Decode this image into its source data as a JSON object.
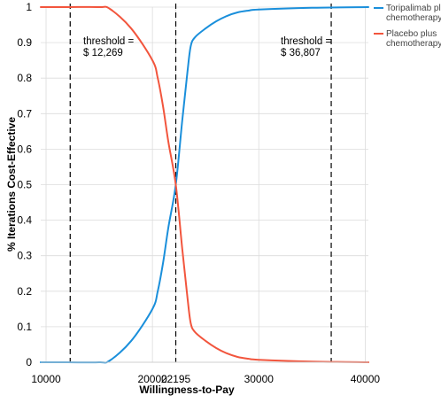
{
  "chart_data": {
    "type": "line",
    "xlabel": "Willingness-to-Pay",
    "ylabel": "% Iterations Cost-Effective",
    "xlim": [
      9500,
      40300
    ],
    "ylim": [
      0,
      1
    ],
    "x_ticks": [
      10000,
      20000,
      22195,
      30000,
      40000
    ],
    "x_tick_labels": [
      "10000",
      "20000",
      "22195",
      "30000",
      "40000"
    ],
    "y_ticks": [
      0,
      0.1,
      0.2,
      0.3,
      0.4,
      0.5,
      0.6,
      0.7,
      0.8,
      0.9,
      1
    ],
    "y_tick_labels": [
      "0",
      "0.1",
      "0.2",
      "0.3",
      "0.4",
      "0.5",
      "0.6",
      "0.7",
      "0.8",
      "0.9",
      "1"
    ],
    "grid": true,
    "legend_position": "right",
    "series": [
      {
        "name": "Toripalimab plus chemotherapy",
        "color": "#1a8fdb",
        "x": [
          9500,
          12000,
          15000,
          16000,
          18000,
          20000,
          20500,
          21000,
          21500,
          22195,
          22800,
          23300,
          23600,
          24000,
          25000,
          26000,
          27000,
          28000,
          29000,
          30000,
          35000,
          40300
        ],
        "y": [
          0,
          0,
          0,
          0.005,
          0.06,
          0.15,
          0.2,
          0.28,
          0.38,
          0.5,
          0.68,
          0.82,
          0.89,
          0.915,
          0.94,
          0.96,
          0.975,
          0.985,
          0.99,
          0.993,
          0.998,
          1
        ]
      },
      {
        "name": "Placebo plus chemotherapy",
        "color": "#f2553d",
        "x": [
          9500,
          12000,
          15000,
          16000,
          18000,
          20000,
          20500,
          21000,
          21500,
          22195,
          22800,
          23300,
          23600,
          24000,
          25000,
          26000,
          27000,
          28000,
          29000,
          30000,
          35000,
          40300
        ],
        "y": [
          1,
          1,
          1,
          0.995,
          0.94,
          0.85,
          0.8,
          0.72,
          0.62,
          0.5,
          0.32,
          0.18,
          0.11,
          0.085,
          0.06,
          0.04,
          0.025,
          0.015,
          0.01,
          0.007,
          0.002,
          0
        ]
      }
    ],
    "reference_lines": [
      {
        "x": 12269,
        "label_lines": [
          "threshold =",
          "$ 12,269"
        ]
      },
      {
        "x": 22195,
        "label_lines": []
      },
      {
        "x": 36807,
        "label_lines": [
          "threshold =",
          "$ 36,807"
        ]
      }
    ],
    "legend": [
      {
        "lines": [
          "Toripalimab plus",
          "chemotherapy"
        ],
        "color": "#1a8fdb"
      },
      {
        "lines": [
          "Placebo plus",
          "chemotherapy"
        ],
        "color": "#f2553d"
      }
    ]
  }
}
